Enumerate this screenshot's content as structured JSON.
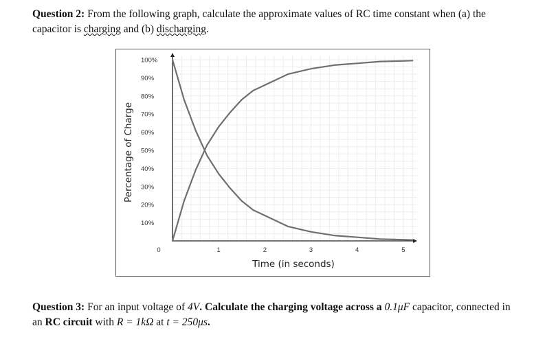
{
  "question2": {
    "label": "Question 2:",
    "text_part1": " From the following graph, calculate the approximate values of RC time constant when (a) the capacitor is ",
    "charging_word": "charging",
    "text_part2": " and (b) ",
    "discharging_word": "discharging",
    "text_end": "."
  },
  "question3": {
    "label": "Question 3:",
    "text_part1": " For an input voltage of ",
    "voltage": "4V",
    "text_part2": ". Calculate the charging voltage across a ",
    "capacitance": "0.1μF",
    "text_part3": " capacitor, connected in an ",
    "rc_circuit": "RC circuit",
    "text_part4": " with ",
    "resistance": "R = 1kΩ",
    "text_part5": " at ",
    "time": "t = 250μs",
    "text_end": "."
  },
  "chart_data": {
    "type": "line",
    "xlabel": "Time (in seconds)",
    "ylabel": "Percentage of Charge",
    "x_ticks": [
      "0",
      "1",
      "2",
      "3",
      "4",
      "5"
    ],
    "y_ticks": [
      "10%",
      "20%",
      "30%",
      "40%",
      "50%",
      "60%",
      "70%",
      "80%",
      "90%",
      "100%"
    ],
    "xlim": [
      0,
      5.3
    ],
    "ylim": [
      0,
      100
    ],
    "grid": true,
    "series": [
      {
        "x": [
          0,
          0.25,
          0.5,
          0.75,
          1,
          1.25,
          1.5,
          1.75,
          2,
          2.5,
          3,
          3.5,
          4,
          4.5,
          5,
          5.2
        ],
        "values": [
          0,
          22,
          39,
          53,
          63,
          71,
          78,
          83,
          86,
          92,
          95,
          97,
          98,
          99,
          99.3,
          99.5
        ],
        "color": "#6f6f6f"
      },
      {
        "x": [
          0,
          0.25,
          0.5,
          0.75,
          1,
          1.25,
          1.5,
          1.75,
          2,
          2.5,
          3,
          3.5,
          4,
          4.5,
          5,
          5.2
        ],
        "values": [
          100,
          78,
          61,
          47,
          37,
          29,
          22,
          17,
          14,
          8,
          5,
          3,
          2,
          1,
          0.7,
          0.5
        ],
        "color": "#6f6f6f"
      }
    ]
  }
}
